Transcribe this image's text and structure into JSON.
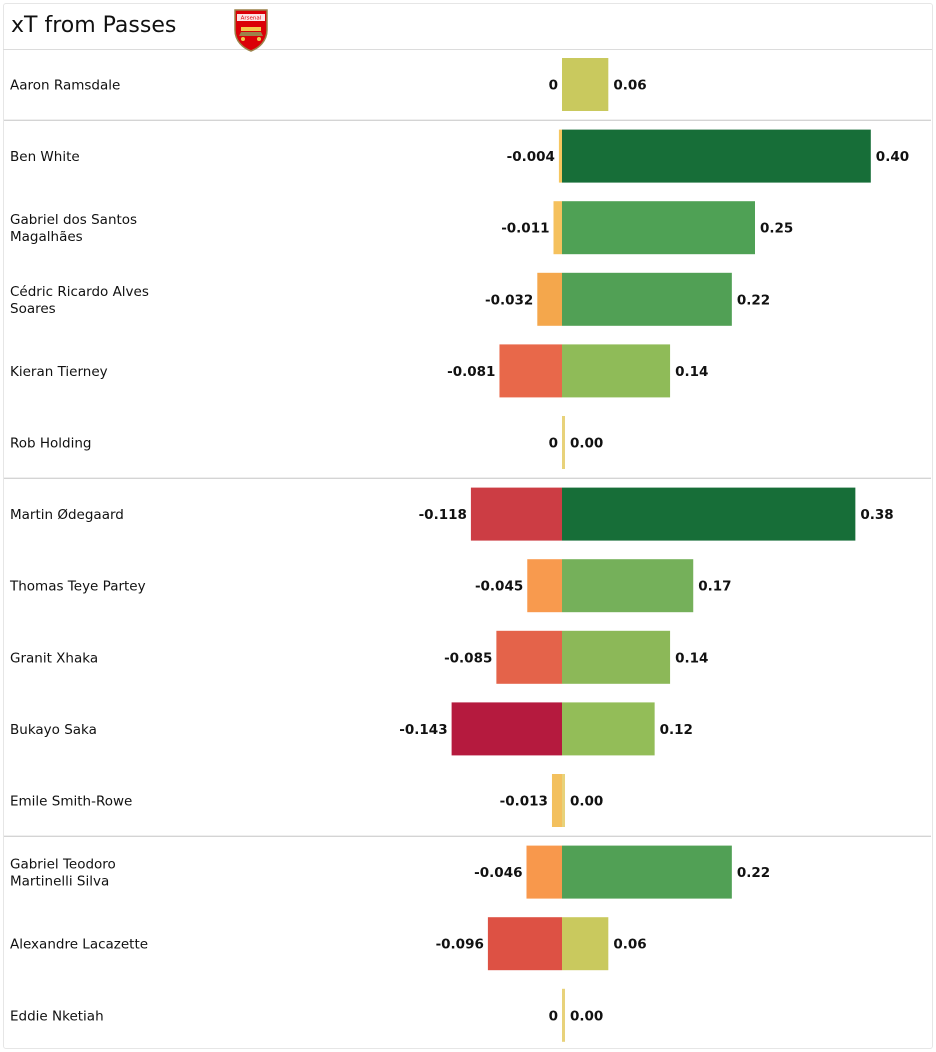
{
  "title": "xT from Passes",
  "crest": {
    "text": "Arsenal",
    "color": "#db0007",
    "accent": "#9c824a"
  },
  "chart_data": {
    "type": "bar",
    "orientation": "horizontal-diverging",
    "categories": [
      "Aaron Ramsdale",
      "Ben White",
      "Gabriel dos Santos\nMagalhães",
      "Cédric Ricardo Alves\nSoares",
      "Kieran Tierney",
      "Rob Holding",
      "Martin Ødegaard",
      "Thomas Teye Partey",
      "Granit Xhaka",
      "Bukayo Saka",
      "Emile Smith-Rowe",
      "Gabriel Teodoro\nMartinelli Silva",
      "Alexandre Lacazette",
      "Eddie Nketiah"
    ],
    "series": [
      {
        "values": [
          0,
          -0.004,
          -0.011,
          -0.032,
          -0.081,
          0,
          -0.118,
          -0.045,
          -0.085,
          -0.143,
          -0.013,
          -0.046,
          -0.096,
          0
        ],
        "labels": [
          "0",
          "-0.004",
          "-0.011",
          "-0.032",
          "-0.081",
          "0",
          "-0.118",
          "-0.045",
          "-0.085",
          "-0.143",
          "-0.013",
          "-0.046",
          "-0.096",
          "0"
        ],
        "colors": [
          "#f5cc66",
          "#f6c65e",
          "#f5c15d",
          "#f4a74c",
          "#e8684a",
          "#f5cc66",
          "#cc3d44",
          "#f89a4e",
          "#e4634a",
          "#b51a3e",
          "#f3c05d",
          "#f8984c",
          "#dd5144",
          "#f5cc66"
        ]
      },
      {
        "values": [
          0.06,
          0.4,
          0.25,
          0.22,
          0.14,
          0.0,
          0.38,
          0.17,
          0.14,
          0.12,
          0.0,
          0.22,
          0.06,
          0.0
        ],
        "labels": [
          "0.06",
          "0.40",
          "0.25",
          "0.22",
          "0.14",
          "0.00",
          "0.38",
          "0.17",
          "0.14",
          "0.12",
          "0.00",
          "0.22",
          "0.06",
          "0.00"
        ],
        "colors": [
          "#c9c95e",
          "#176e38",
          "#4fa155",
          "#51a055",
          "#8fbb58",
          "#e8d27a",
          "#176e38",
          "#75b05a",
          "#8cb858",
          "#93bd58",
          "#e8d27a",
          "#51a055",
          "#c9c95e",
          "#e8d27a"
        ]
      }
    ],
    "groups": [
      [
        0
      ],
      [
        1,
        2,
        3,
        4,
        5
      ],
      [
        6,
        7,
        8,
        9,
        10
      ],
      [
        11,
        12,
        13
      ]
    ],
    "grid": false,
    "legend": "none"
  }
}
